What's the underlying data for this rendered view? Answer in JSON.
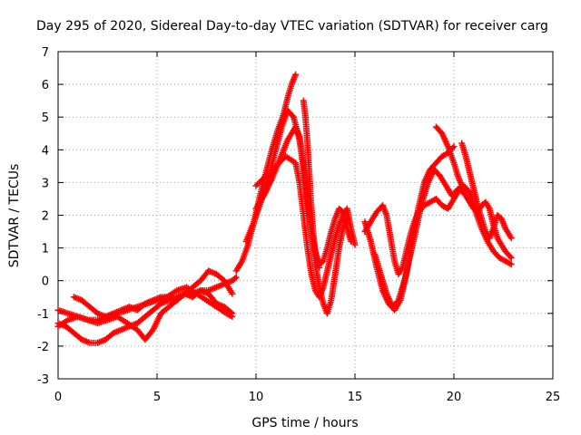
{
  "chart_data": {
    "type": "scatter",
    "title": "Day 295 of 2020, Sidereal Day-to-day VTEC variation (SDTVAR) for receiver carg",
    "xlabel": "GPS time / hours",
    "ylabel": "SDTVAR / TECUs",
    "xlim": [
      0,
      25
    ],
    "ylim": [
      -3,
      7
    ],
    "xticks": [
      0,
      5,
      10,
      15,
      20,
      25
    ],
    "yticks": [
      -3,
      -2,
      -1,
      0,
      1,
      2,
      3,
      4,
      5,
      6,
      7
    ],
    "grid": true,
    "marker": "plus",
    "color": "#ff0000",
    "series": [
      {
        "name": "trace-1",
        "x": [
          0,
          0.4,
          0.8,
          1.2,
          1.6,
          2.0,
          2.4,
          2.8,
          3.2,
          3.6,
          4.0,
          4.4,
          4.8,
          5.2,
          5.6,
          6.0,
          6.4,
          6.8,
          7.2,
          7.6,
          8.0,
          8.4,
          8.8,
          9.0
        ],
        "y": [
          -1.3,
          -1.4,
          -1.6,
          -1.8,
          -1.9,
          -1.9,
          -1.8,
          -1.6,
          -1.5,
          -1.4,
          -1.3,
          -1.1,
          -0.9,
          -0.7,
          -0.6,
          -0.5,
          -0.4,
          -0.4,
          -0.3,
          -0.3,
          -0.2,
          -0.1,
          0.0,
          0.1
        ]
      },
      {
        "name": "trace-2",
        "x": [
          0,
          0.5,
          1.0,
          1.5,
          2.0,
          2.5,
          3.0,
          3.5,
          4.0,
          4.4,
          4.8,
          5.2,
          5.6,
          6.0,
          6.4,
          6.8,
          7.2,
          7.6,
          8.0,
          8.4,
          8.8
        ],
        "y": [
          -1.4,
          -1.2,
          -1.1,
          -1.2,
          -1.3,
          -1.2,
          -1.1,
          -1.3,
          -1.5,
          -1.8,
          -1.5,
          -1.0,
          -0.8,
          -0.6,
          -0.4,
          -0.5,
          -0.3,
          -0.4,
          -0.7,
          -0.8,
          -1.0
        ]
      },
      {
        "name": "trace-3",
        "x": [
          0.8,
          1.2,
          1.6,
          2.0,
          2.4,
          2.8,
          3.2,
          3.6,
          4.0,
          4.4,
          4.8,
          5.2,
          5.6,
          6.0,
          6.4,
          6.8,
          7.2,
          7.6,
          8.0,
          8.4,
          8.8
        ],
        "y": [
          -0.5,
          -0.6,
          -0.8,
          -1.0,
          -1.1,
          -1.0,
          -0.9,
          -0.8,
          -0.9,
          -0.7,
          -0.6,
          -0.5,
          -0.5,
          -0.6,
          -0.4,
          -0.2,
          0.0,
          0.3,
          0.2,
          0.0,
          -0.4
        ]
      },
      {
        "name": "trace-4",
        "x": [
          0,
          0.5,
          1.0,
          1.5,
          2.0,
          2.5,
          3.0,
          3.5,
          4.0,
          4.5,
          5.0,
          5.5,
          6.0,
          6.5,
          7.0,
          7.5,
          8.0,
          8.5,
          8.8
        ],
        "y": [
          -0.9,
          -1.0,
          -1.1,
          -1.2,
          -1.2,
          -1.1,
          -1.0,
          -0.9,
          -0.8,
          -0.7,
          -0.6,
          -0.5,
          -0.3,
          -0.2,
          -0.4,
          -0.6,
          -0.8,
          -1.0,
          -1.1
        ]
      },
      {
        "name": "trace-5",
        "x": [
          9.0,
          9.3,
          9.6,
          9.9,
          10.2,
          10.5,
          10.8,
          11.1,
          11.4,
          11.6,
          11.8,
          12.0
        ],
        "y": [
          0.3,
          0.6,
          1.1,
          1.8,
          2.6,
          3.3,
          4.0,
          4.6,
          5.1,
          5.6,
          6.0,
          6.3
        ]
      },
      {
        "name": "trace-6",
        "x": [
          9.5,
          9.9,
          10.3,
          10.7,
          11.0,
          11.3,
          11.6,
          11.9,
          12.2,
          12.4,
          12.6,
          12.8,
          13.0,
          13.2
        ],
        "y": [
          1.2,
          1.8,
          2.5,
          3.3,
          4.0,
          4.7,
          5.2,
          5.0,
          4.3,
          3.4,
          2.4,
          1.5,
          0.8,
          0.4
        ]
      },
      {
        "name": "trace-7",
        "x": [
          10.0,
          10.4,
          10.8,
          11.2,
          11.6,
          12.0,
          12.2,
          12.4,
          12.6,
          12.8,
          13.0,
          13.2,
          13.4,
          13.6,
          13.8,
          14.0,
          14.2,
          14.4,
          14.6
        ],
        "y": [
          2.2,
          2.6,
          3.1,
          3.7,
          4.3,
          4.7,
          4.4,
          3.6,
          2.6,
          1.5,
          0.5,
          -0.2,
          -0.7,
          -1.0,
          -0.6,
          0.2,
          1.0,
          1.6,
          1.9
        ]
      },
      {
        "name": "trace-8",
        "x": [
          10.0,
          10.5,
          11.0,
          11.5,
          12.0,
          12.2,
          12.4,
          12.6,
          12.8,
          13.0,
          13.2,
          13.4,
          13.6,
          13.8,
          14.0,
          14.2,
          14.4,
          14.6,
          14.8,
          15.0
        ],
        "y": [
          2.9,
          3.2,
          3.5,
          3.8,
          3.6,
          3.0,
          2.0,
          1.0,
          0.2,
          -0.3,
          -0.5,
          -0.2,
          0.3,
          0.8,
          1.3,
          1.7,
          2.0,
          2.2,
          1.6,
          1.1
        ]
      },
      {
        "name": "trace-9",
        "x": [
          12.4,
          12.5,
          12.6,
          12.7,
          12.8,
          12.9,
          13.0,
          13.2,
          13.4,
          13.6,
          13.8,
          14.0,
          14.2,
          14.4,
          14.6,
          14.8
        ],
        "y": [
          5.5,
          5.0,
          4.2,
          3.2,
          2.2,
          1.4,
          0.9,
          0.5,
          0.6,
          1.0,
          1.5,
          1.9,
          2.2,
          2.1,
          1.6,
          1.2
        ]
      },
      {
        "name": "trace-10",
        "x": [
          15.5,
          15.8,
          16.1,
          16.4,
          16.7,
          17.0,
          17.3,
          17.6,
          17.9,
          18.2,
          18.5,
          18.8,
          19.1,
          19.4,
          19.7,
          20.0
        ],
        "y": [
          1.8,
          1.2,
          0.4,
          -0.3,
          -0.7,
          -0.9,
          -0.6,
          0.2,
          1.2,
          2.2,
          3.0,
          3.4,
          3.6,
          3.8,
          3.9,
          4.1
        ]
      },
      {
        "name": "trace-11",
        "x": [
          15.5,
          15.8,
          16.1,
          16.4,
          16.6,
          16.8,
          17.0,
          17.2,
          17.4,
          17.6,
          17.8,
          18.0,
          18.2,
          18.5,
          18.8,
          19.1,
          19.4,
          19.7,
          20.0,
          20.3,
          20.6,
          20.9
        ],
        "y": [
          1.5,
          1.8,
          2.1,
          2.3,
          2.0,
          1.3,
          0.6,
          0.2,
          0.4,
          0.9,
          1.4,
          1.8,
          2.1,
          2.3,
          2.4,
          2.5,
          2.3,
          2.2,
          2.5,
          2.8,
          2.6,
          2.3
        ]
      },
      {
        "name": "trace-12",
        "x": [
          16.0,
          16.3,
          16.6,
          16.9,
          17.2,
          17.5,
          17.8,
          18.1,
          18.4,
          18.7,
          19.0,
          19.3,
          19.6,
          19.9,
          20.2,
          20.5,
          20.8,
          21.1,
          21.4,
          21.7,
          22.0,
          22.3,
          22.6,
          22.9
        ],
        "y": [
          0.8,
          0.2,
          -0.4,
          -0.8,
          -0.6,
          0.0,
          0.8,
          1.6,
          2.4,
          3.0,
          3.4,
          3.2,
          2.9,
          2.6,
          2.8,
          2.9,
          2.7,
          2.1,
          1.6,
          1.2,
          0.9,
          0.7,
          0.6,
          0.5
        ]
      },
      {
        "name": "trace-13",
        "x": [
          19.1,
          19.4,
          19.7,
          20.0,
          20.2,
          20.4,
          20.6,
          20.8,
          21.0,
          21.2,
          21.4,
          21.6,
          21.8,
          22.0,
          22.2,
          22.4,
          22.6,
          22.9
        ],
        "y": [
          4.7,
          4.5,
          4.1,
          3.6,
          3.2,
          2.9,
          2.6,
          2.4,
          2.2,
          2.1,
          2.3,
          2.4,
          2.2,
          1.7,
          1.3,
          1.1,
          0.9,
          0.7
        ]
      },
      {
        "name": "trace-14",
        "x": [
          20.4,
          20.6,
          20.8,
          21.0,
          21.2,
          21.4,
          21.6,
          21.8,
          22.0,
          22.2,
          22.4,
          22.6,
          22.9
        ],
        "y": [
          4.2,
          3.8,
          3.3,
          2.8,
          2.3,
          1.9,
          1.5,
          1.3,
          1.6,
          2.0,
          1.9,
          1.6,
          1.3
        ]
      }
    ]
  }
}
